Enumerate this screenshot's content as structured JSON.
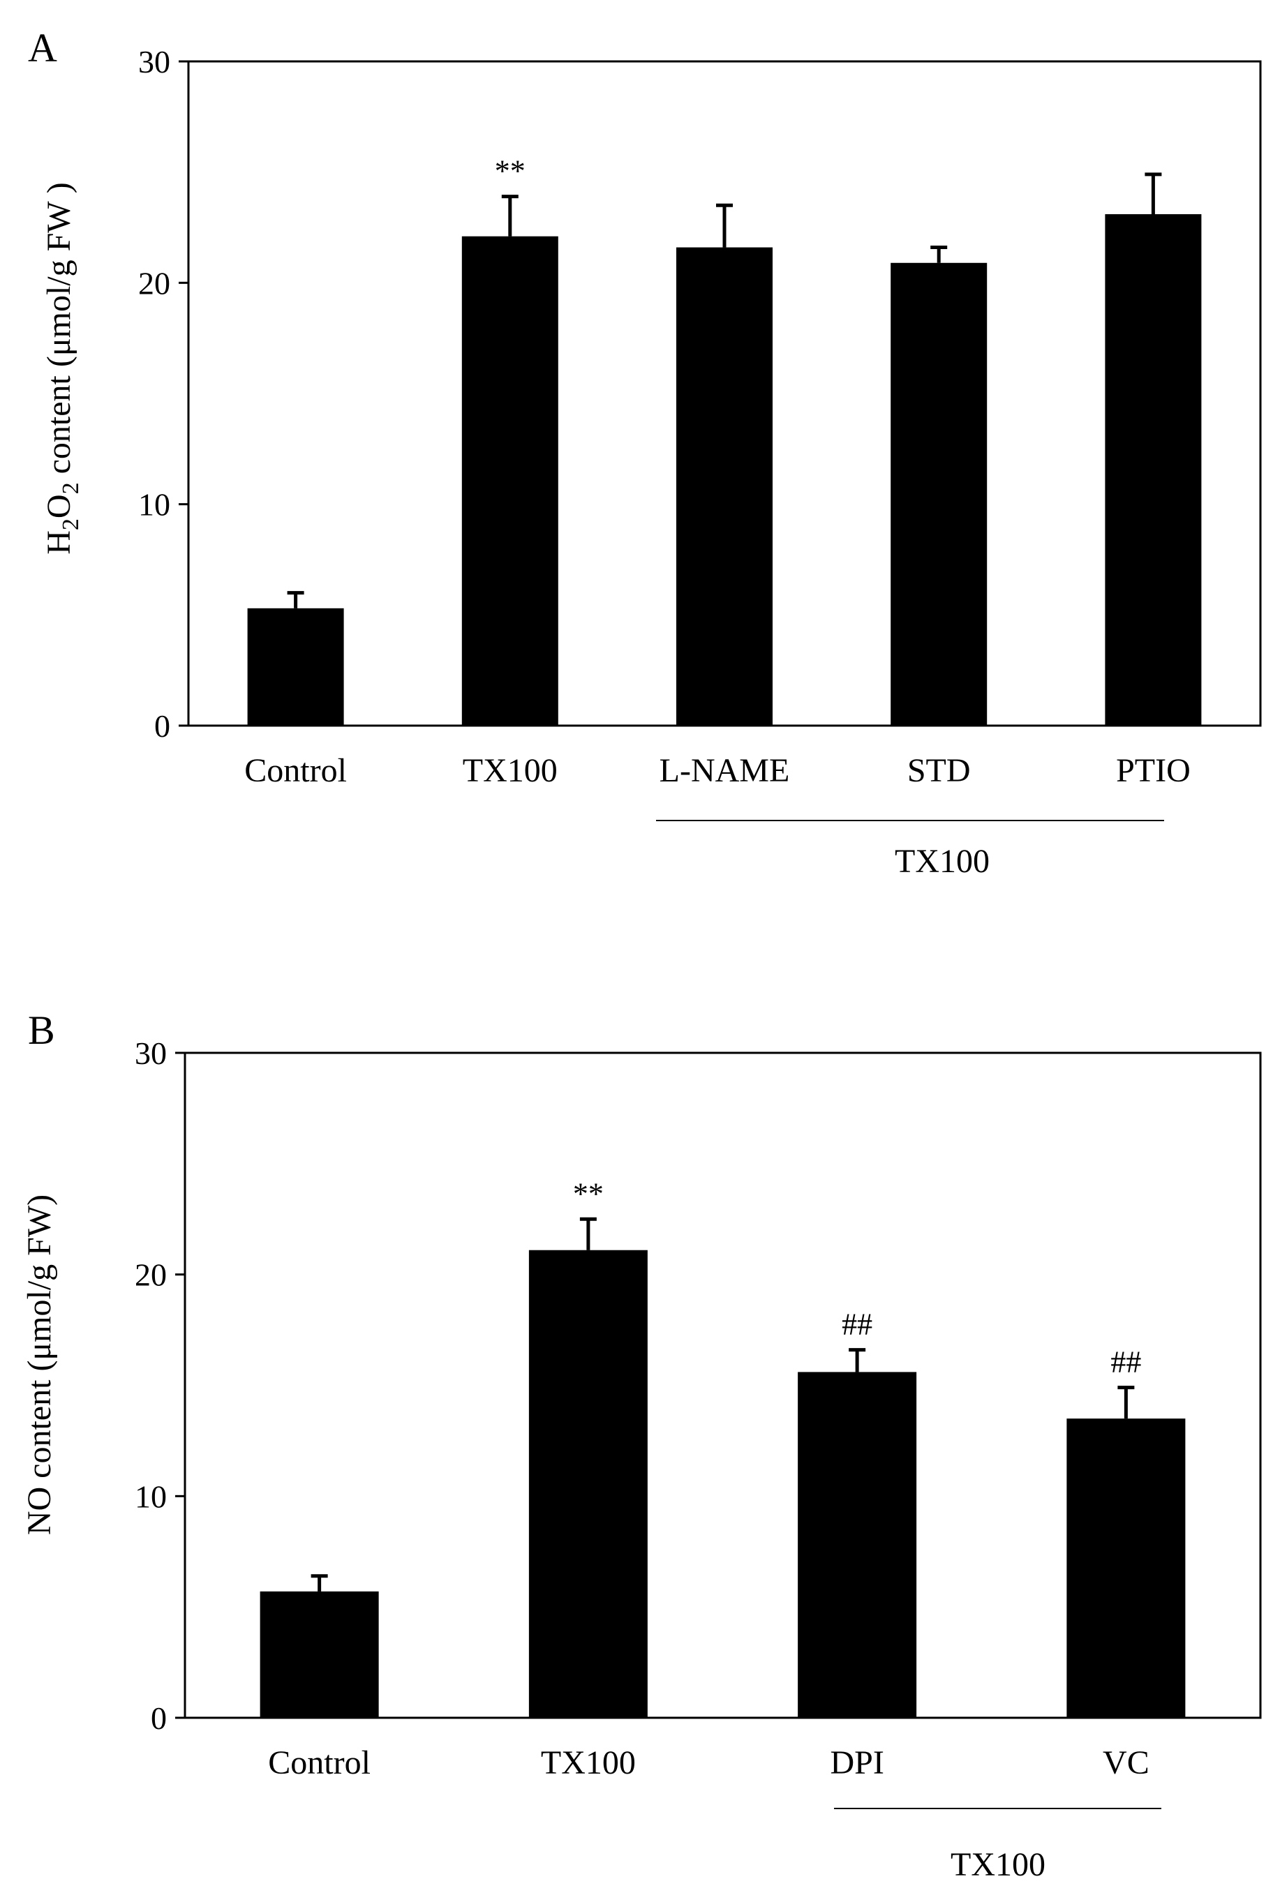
{
  "chart_data": [
    {
      "panel": "A",
      "type": "bar",
      "categories": [
        "Control",
        "TX100",
        "L-NAME",
        "STD",
        "PTIO"
      ],
      "values": [
        5.3,
        22.1,
        21.6,
        20.9,
        23.1
      ],
      "errors": [
        0.7,
        1.8,
        1.9,
        0.7,
        1.8
      ],
      "annotations": [
        "",
        "**",
        "",
        "",
        ""
      ],
      "ylabel_parts": [
        "H",
        "2",
        "O",
        "2",
        " content (μmol/g FW )"
      ],
      "ylim": [
        0,
        30
      ],
      "yticks": [
        0,
        10,
        20,
        30
      ],
      "group_label": "TX100",
      "group_categories": [
        "L-NAME",
        "STD",
        "PTIO"
      ],
      "bar_color": "#000000"
    },
    {
      "panel": "B",
      "type": "bar",
      "categories": [
        "Control",
        "TX100",
        "DPI",
        "VC"
      ],
      "values": [
        5.7,
        21.1,
        15.6,
        13.5
      ],
      "errors": [
        0.7,
        1.4,
        1.0,
        1.4
      ],
      "annotations": [
        "",
        "**",
        "##",
        "##"
      ],
      "ylabel": "NO content (μmol/g FW)",
      "ylim": [
        0,
        30
      ],
      "yticks": [
        0,
        10,
        20,
        30
      ],
      "group_label": "TX100",
      "group_categories": [
        "DPI",
        "VC"
      ],
      "bar_color": "#000000"
    }
  ]
}
